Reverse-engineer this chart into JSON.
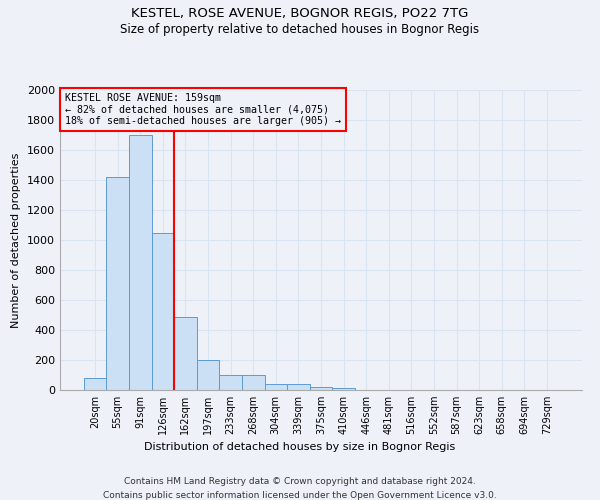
{
  "title1": "KESTEL, ROSE AVENUE, BOGNOR REGIS, PO22 7TG",
  "title2": "Size of property relative to detached houses in Bognor Regis",
  "xlabel": "Distribution of detached houses by size in Bognor Regis",
  "ylabel": "Number of detached properties",
  "categories": [
    "20sqm",
    "55sqm",
    "91sqm",
    "126sqm",
    "162sqm",
    "197sqm",
    "233sqm",
    "268sqm",
    "304sqm",
    "339sqm",
    "375sqm",
    "410sqm",
    "446sqm",
    "481sqm",
    "516sqm",
    "552sqm",
    "587sqm",
    "623sqm",
    "658sqm",
    "694sqm",
    "729sqm"
  ],
  "values": [
    80,
    1420,
    1700,
    1050,
    490,
    200,
    100,
    100,
    40,
    40,
    20,
    15,
    0,
    0,
    0,
    0,
    0,
    0,
    0,
    0,
    0
  ],
  "bar_color": "#cce0f5",
  "bar_edge_color": "#5b9bd5",
  "annotation_text": "KESTEL ROSE AVENUE: 159sqm\n← 82% of detached houses are smaller (4,075)\n18% of semi-detached houses are larger (905) →",
  "vline_color": "red",
  "vline_x_index": 4,
  "footnote1": "Contains HM Land Registry data © Crown copyright and database right 2024.",
  "footnote2": "Contains public sector information licensed under the Open Government Licence v3.0.",
  "background_color": "#eef2f8",
  "grid_color": "#d8e4f0",
  "ylim": [
    0,
    2000
  ],
  "yticks": [
    0,
    200,
    400,
    600,
    800,
    1000,
    1200,
    1400,
    1600,
    1800,
    2000
  ]
}
